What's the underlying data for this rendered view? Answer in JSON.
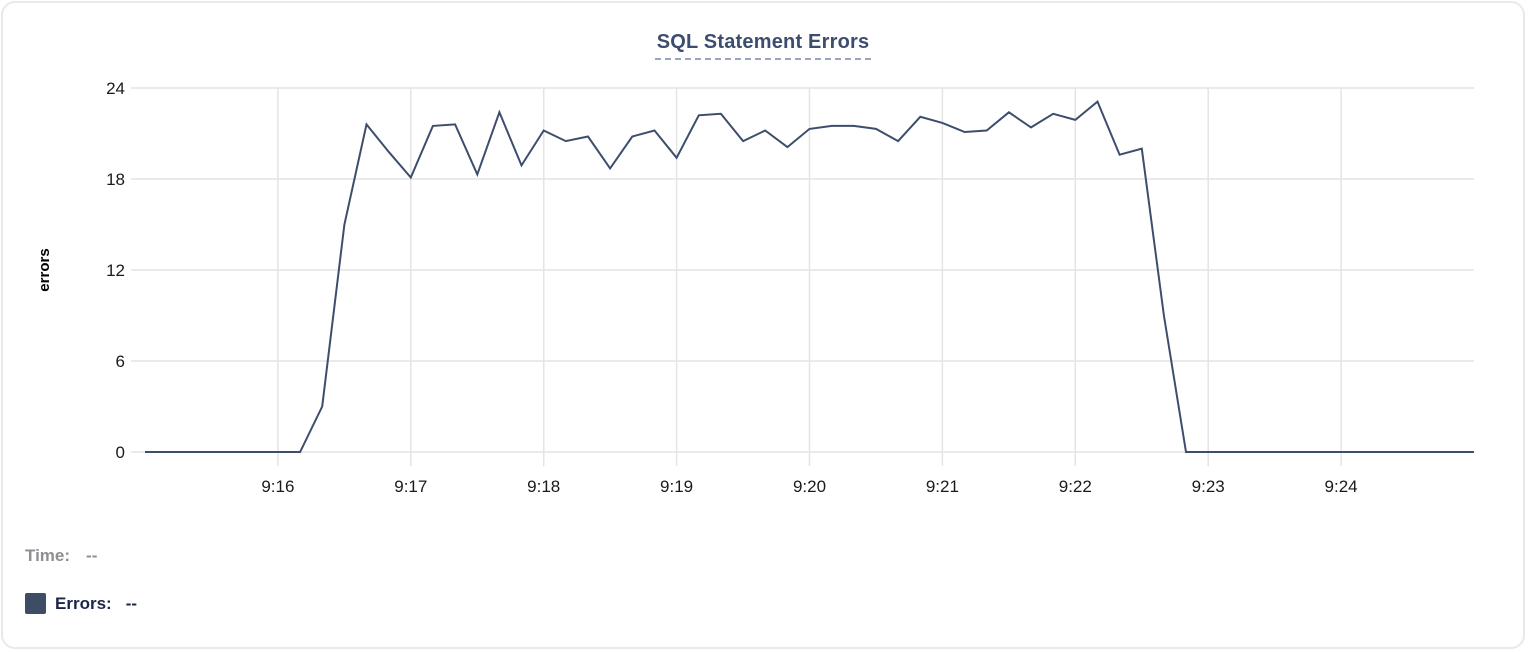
{
  "chart": {
    "title": "SQL Statement Errors"
  },
  "tooltip": {
    "time_label": "Time:",
    "time_value": "--",
    "errors_label": "Errors:",
    "errors_value": "--"
  },
  "colors": {
    "series_line": "#3d4e6c",
    "title_text": "#3d4d6e",
    "title_underline": "#9aa5bf",
    "gridline": "#e4e4e4",
    "legend_swatch": "#3e4d66",
    "time_text": "#8e8e93",
    "errors_text": "#1b2548"
  },
  "chart_data": {
    "type": "line",
    "title": "SQL Statement Errors",
    "xlabel": "",
    "ylabel": "errors",
    "x_range": [
      "9:15:00",
      "9:25:00"
    ],
    "x_tick_labels": [
      "9:16",
      "9:17",
      "9:18",
      "9:19",
      "9:20",
      "9:21",
      "9:22",
      "9:23",
      "9:24"
    ],
    "y_ticks": [
      0,
      6,
      12,
      18,
      24
    ],
    "ylim": [
      0,
      24
    ],
    "grid": true,
    "legend_position": "bottom-left",
    "series": [
      {
        "name": "Errors",
        "color": "#3d4e6c",
        "points": [
          [
            "9:15:00",
            0
          ],
          [
            "9:15:10",
            0
          ],
          [
            "9:15:20",
            0
          ],
          [
            "9:15:30",
            0
          ],
          [
            "9:15:40",
            0
          ],
          [
            "9:15:50",
            0
          ],
          [
            "9:16:00",
            0
          ],
          [
            "9:16:10",
            0
          ],
          [
            "9:16:20",
            3
          ],
          [
            "9:16:30",
            15
          ],
          [
            "9:16:40",
            21.6
          ],
          [
            "9:16:50",
            19.8
          ],
          [
            "9:17:00",
            18.1
          ],
          [
            "9:17:10",
            21.5
          ],
          [
            "9:17:20",
            21.6
          ],
          [
            "9:17:30",
            18.3
          ],
          [
            "9:17:40",
            22.4
          ],
          [
            "9:17:50",
            18.9
          ],
          [
            "9:18:00",
            21.2
          ],
          [
            "9:18:10",
            20.5
          ],
          [
            "9:18:20",
            20.8
          ],
          [
            "9:18:30",
            18.7
          ],
          [
            "9:18:40",
            20.8
          ],
          [
            "9:18:50",
            21.2
          ],
          [
            "9:19:00",
            19.4
          ],
          [
            "9:19:10",
            22.2
          ],
          [
            "9:19:20",
            22.3
          ],
          [
            "9:19:30",
            20.5
          ],
          [
            "9:19:40",
            21.2
          ],
          [
            "9:19:50",
            20.1
          ],
          [
            "9:20:00",
            21.3
          ],
          [
            "9:20:10",
            21.5
          ],
          [
            "9:20:20",
            21.5
          ],
          [
            "9:20:30",
            21.3
          ],
          [
            "9:20:40",
            20.5
          ],
          [
            "9:20:50",
            22.1
          ],
          [
            "9:21:00",
            21.7
          ],
          [
            "9:21:10",
            21.1
          ],
          [
            "9:21:20",
            21.2
          ],
          [
            "9:21:30",
            22.4
          ],
          [
            "9:21:40",
            21.4
          ],
          [
            "9:21:50",
            22.3
          ],
          [
            "9:22:00",
            21.9
          ],
          [
            "9:22:10",
            23.1
          ],
          [
            "9:22:20",
            19.6
          ],
          [
            "9:22:30",
            20.0
          ],
          [
            "9:22:40",
            9
          ],
          [
            "9:22:50",
            0
          ],
          [
            "9:23:00",
            0
          ],
          [
            "9:23:10",
            0
          ],
          [
            "9:23:20",
            0
          ],
          [
            "9:23:30",
            0
          ],
          [
            "9:23:40",
            0
          ],
          [
            "9:23:50",
            0
          ],
          [
            "9:24:00",
            0
          ],
          [
            "9:24:10",
            0
          ],
          [
            "9:24:20",
            0
          ],
          [
            "9:24:30",
            0
          ],
          [
            "9:24:40",
            0
          ],
          [
            "9:24:50",
            0
          ],
          [
            "9:25:00",
            0
          ]
        ]
      }
    ]
  }
}
